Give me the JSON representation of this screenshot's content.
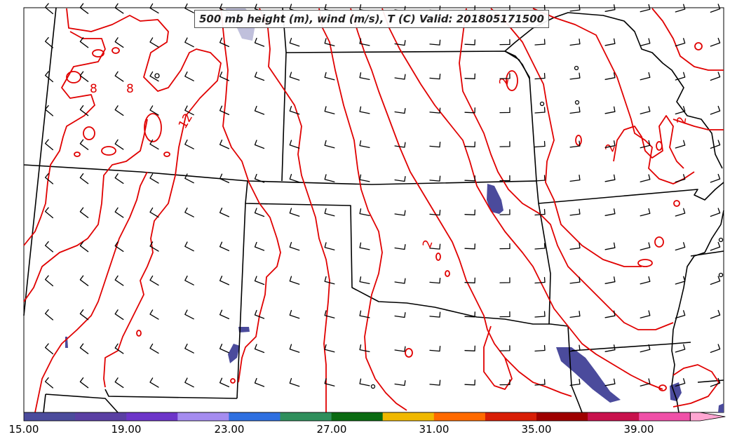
{
  "title": "500 mb height (m), wind (m/s), T (C) Valid: 201805171500",
  "contour_labels": [
    "8",
    "8",
    "12",
    "2",
    "2",
    "2",
    "2"
  ],
  "colorbar": {
    "ticks": [
      "15.00",
      "19.00",
      "23.00",
      "27.00",
      "31.00",
      "35.00",
      "39.00"
    ],
    "colors": [
      "#4b4b9c",
      "#5a3fa3",
      "#6d35c9",
      "#a58cf0",
      "#2e6fe0",
      "#2f8f5c",
      "#0a6b12",
      "#f0b800",
      "#ff6a00",
      "#d81e06",
      "#9e0000",
      "#c8124d",
      "#f050a8",
      "#ffa6d2"
    ]
  },
  "colors": {
    "temperature_contour": "#e00000",
    "boundaries": "#000000",
    "wind_barb": "#000000",
    "shading": "#4b4b9c"
  }
}
